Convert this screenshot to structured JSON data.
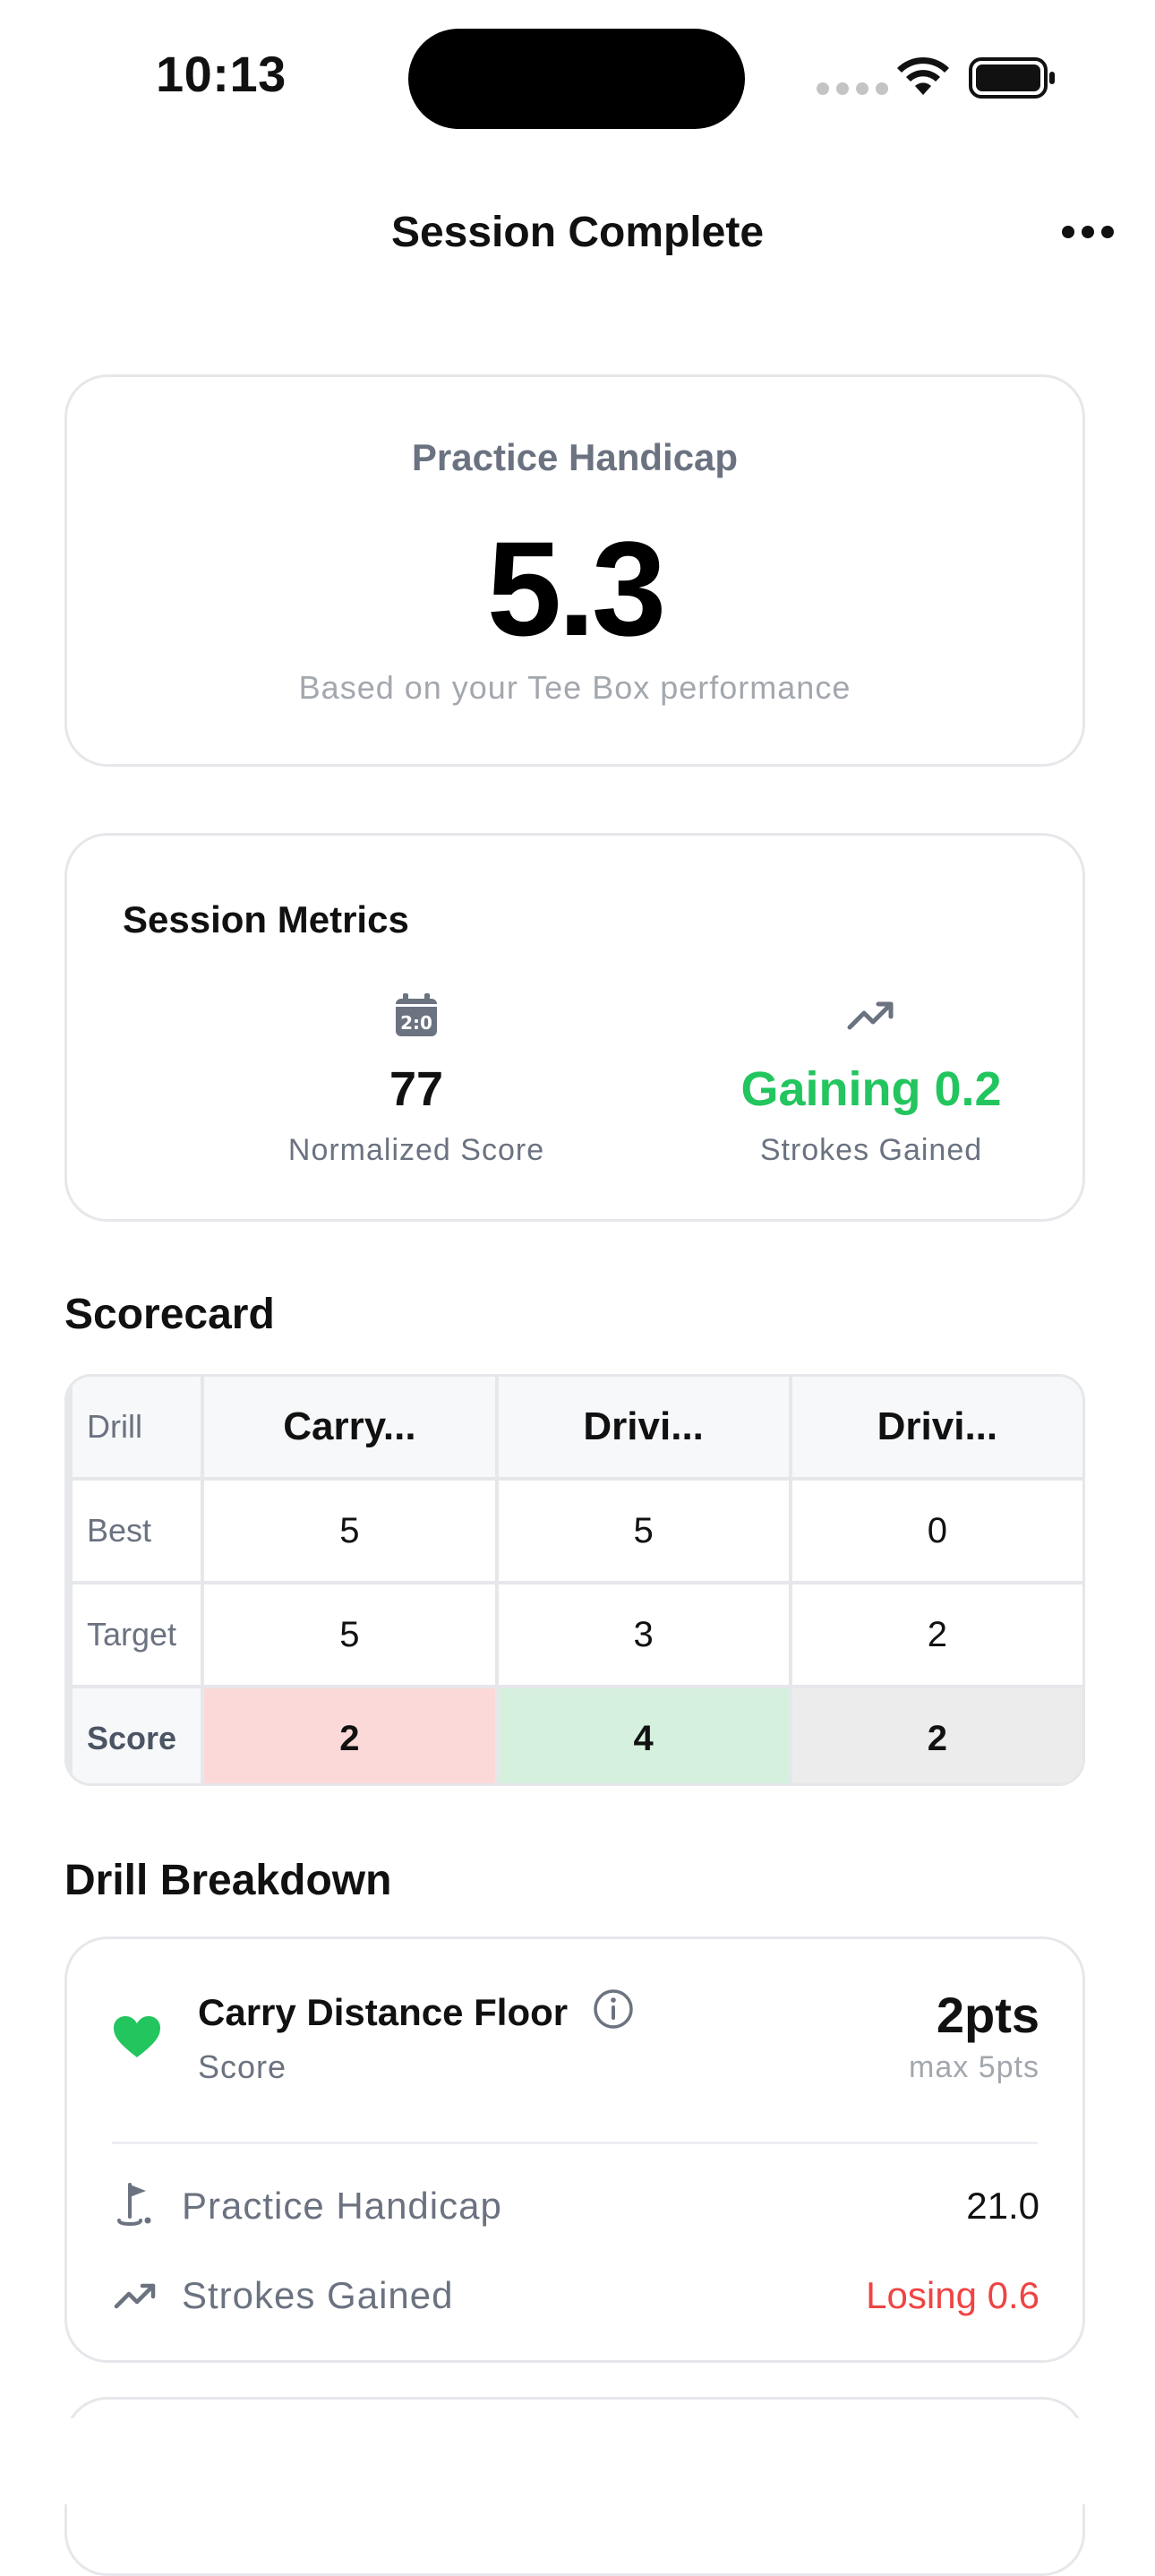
{
  "status_bar": {
    "time": "10:13"
  },
  "nav": {
    "title": "Session Complete"
  },
  "handicap": {
    "label": "Practice Handicap",
    "value": "5.3",
    "subtitle": "Based on your Tee Box performance"
  },
  "metrics": {
    "title": "Session Metrics",
    "items": [
      {
        "icon": "calendar-icon",
        "value": "77",
        "label": "Normalized Score"
      },
      {
        "icon": "trend-up-icon",
        "value": "Gaining 0.2",
        "label": "Strokes Gained",
        "color": "#22c55e"
      }
    ]
  },
  "scorecard": {
    "title": "Scorecard",
    "header_label": "Drill",
    "columns": [
      "Carry...",
      "Drivi...",
      "Drivi..."
    ],
    "rows": [
      {
        "label": "Best",
        "values": [
          "5",
          "5",
          "0"
        ]
      },
      {
        "label": "Target",
        "values": [
          "5",
          "3",
          "2"
        ]
      },
      {
        "label": "Score",
        "values": [
          "2",
          "4",
          "2"
        ]
      }
    ],
    "score_colors": [
      "#fbd9d9",
      "#d5f1de",
      "#ececec"
    ]
  },
  "drill_breakdown": {
    "title": "Drill Breakdown",
    "drills": [
      {
        "name": "Carry Distance Floor",
        "sub": "Score",
        "points": "2pts",
        "max": "max 5pts",
        "icon": "heart-icon",
        "stats": [
          {
            "icon": "flag-icon",
            "label": "Practice Handicap",
            "value": "21.0"
          },
          {
            "icon": "trend-up-icon",
            "label": "Strokes Gained",
            "value": "Losing 0.6",
            "color": "#ef4444"
          }
        ]
      }
    ]
  }
}
